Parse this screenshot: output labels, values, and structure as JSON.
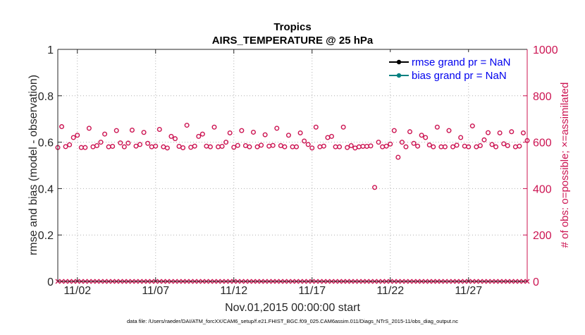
{
  "chart_data": {
    "type": "scatter",
    "title": "Tropics",
    "subtitle": "AIRS_TEMPERATURE @ 25 hPa",
    "xlabel": "Nov.01,2015 00:00:00 start",
    "ylabel": "rmse and bias (model - observation)",
    "ylabel_right": "# of obs: o=possible; ×=assimilated",
    "footnote": "data file: /Users/raeder/DAI/ATM_forcXX/CAM6_setup/f.e21.FHIST_BGC.f09_025.CAM6assim.011/Diags_NTrS_2015-11/obs_diag_output.nc",
    "xlim": [
      0.75,
      30.75
    ],
    "ylim": [
      0,
      1
    ],
    "ylim_right": [
      0,
      1000
    ],
    "x_ticks": [
      2,
      7,
      12,
      17,
      22,
      27
    ],
    "x_tick_labels": [
      "11/02",
      "11/07",
      "11/12",
      "11/17",
      "11/22",
      "11/27"
    ],
    "y_ticks": [
      0,
      0.2,
      0.4,
      0.6,
      0.8,
      1
    ],
    "y_tick_labels": [
      "0",
      "0.2",
      "0.4",
      "0.6",
      "0.8",
      "1"
    ],
    "y_ticks_right": [
      0,
      200,
      400,
      600,
      800,
      1000
    ],
    "y_tick_labels_right": [
      "0",
      "200",
      "400",
      "600",
      "800",
      "1000"
    ],
    "legend_position": "top-right",
    "series": [
      {
        "name": "rmse grand pr = NaN",
        "color": "#000000",
        "marker": "filled-circle",
        "values": []
      },
      {
        "name": "bias grand pr = NaN",
        "color": "#008080",
        "marker": "filled-circle",
        "values": []
      },
      {
        "name": "possible obs",
        "axis": "right",
        "color": "#cc1452",
        "marker": "open-circle",
        "x": [
          0.75,
          1.0,
          1.25,
          1.5,
          1.75,
          2.0,
          2.25,
          2.5,
          2.75,
          3.0,
          3.25,
          3.5,
          3.75,
          4.0,
          4.25,
          4.5,
          4.75,
          5.0,
          5.25,
          5.5,
          5.75,
          6.0,
          6.25,
          6.5,
          6.75,
          7.0,
          7.25,
          7.5,
          7.75,
          8.0,
          8.25,
          8.5,
          8.75,
          9.0,
          9.25,
          9.5,
          9.75,
          10.0,
          10.25,
          10.5,
          10.75,
          11.0,
          11.25,
          11.5,
          11.75,
          12.0,
          12.25,
          12.5,
          12.75,
          13.0,
          13.25,
          13.5,
          13.75,
          14.0,
          14.25,
          14.5,
          14.75,
          15.0,
          15.25,
          15.5,
          15.75,
          16.0,
          16.25,
          16.5,
          16.75,
          17.0,
          17.25,
          17.5,
          17.75,
          18.0,
          18.25,
          18.5,
          18.75,
          19.0,
          19.25,
          19.5,
          19.75,
          20.0,
          20.25,
          20.5,
          20.75,
          21.0,
          21.25,
          21.5,
          21.75,
          22.0,
          22.25,
          22.5,
          22.75,
          23.0,
          23.25,
          23.5,
          23.75,
          24.0,
          24.25,
          24.5,
          24.75,
          25.0,
          25.25,
          25.5,
          25.75,
          26.0,
          26.25,
          26.5,
          26.75,
          27.0,
          27.25,
          27.5,
          27.75,
          28.0,
          28.25,
          28.5,
          28.75,
          29.0,
          29.25,
          29.5,
          29.75,
          30.0,
          30.25,
          30.5,
          30.75
        ],
        "values": [
          577,
          667,
          581,
          589,
          620,
          630,
          577,
          577,
          660,
          580,
          585,
          600,
          635,
          580,
          582,
          650,
          597,
          580,
          596,
          652,
          583,
          590,
          642,
          595,
          580,
          583,
          655,
          580,
          575,
          625,
          615,
          582,
          576,
          673,
          578,
          583,
          625,
          635,
          583,
          580,
          665,
          580,
          582,
          600,
          640,
          578,
          586,
          650,
          585,
          580,
          643,
          580,
          587,
          632,
          583,
          586,
          660,
          585,
          580,
          630,
          580,
          580,
          640,
          605,
          590,
          575,
          665,
          580,
          583,
          620,
          625,
          580,
          580,
          665,
          577,
          585,
          575,
          580,
          582,
          582,
          584,
          405,
          600,
          580,
          583,
          592,
          650,
          535,
          600,
          580,
          645,
          595,
          583,
          630,
          620,
          588,
          580,
          665,
          580,
          580,
          650,
          580,
          587,
          620,
          583,
          580,
          670,
          580,
          585,
          610,
          641,
          590,
          580,
          640,
          593,
          585,
          645,
          580,
          583,
          640,
          607
        ]
      },
      {
        "name": "assimilated obs",
        "axis": "right",
        "color": "#cc1452",
        "marker": "x",
        "constant_value": 0
      }
    ]
  }
}
